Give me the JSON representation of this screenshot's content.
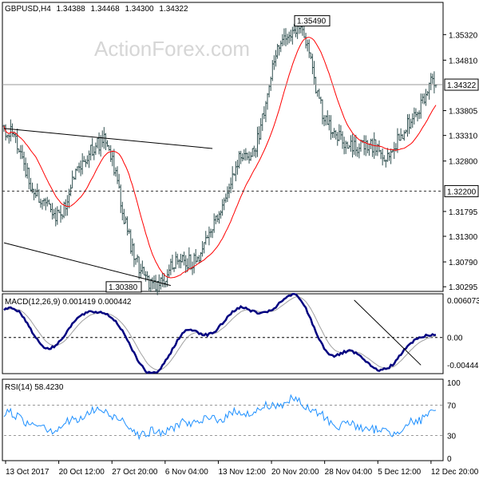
{
  "watermark": "ActionForex.com",
  "chart_data": [
    {
      "panel": "price",
      "type": "ohlc",
      "header": {
        "symbol_tf": "GBPUSD,H4",
        "open": "1.34388",
        "high": "1.34468",
        "low": "1.34300",
        "close": "1.34322"
      },
      "y_ticks": [
        "1.35320",
        "1.34810",
        "1.34322",
        "1.33805",
        "1.33310",
        "1.32800",
        "1.32200",
        "1.31795",
        "1.31300",
        "1.30790",
        "1.30295"
      ],
      "ylim": [
        1.3025,
        1.3585
      ],
      "grid": false,
      "colors": {
        "bars": "#2f4f4f",
        "ma": "#ff0000",
        "level_line": "#333333"
      },
      "annotations": [
        {
          "text": "1.35490",
          "value": 1.3549
        },
        {
          "text": "1.30380",
          "value": 1.3038
        }
      ],
      "price_label": {
        "text": "1.34322",
        "value": 1.34322
      },
      "level_label": {
        "text": "1.32200",
        "value": 1.322
      },
      "key_points": [
        {
          "x": "13 Oct 2017",
          "price": 1.334
        },
        {
          "x": "20 Oct 12:00",
          "price": 1.3175
        },
        {
          "x": "27 Oct 20:00",
          "price": 1.332
        },
        {
          "x": "6 Nov 04:00",
          "price": 1.3038
        },
        {
          "x": "13 Nov 12:00",
          "price": 1.309
        },
        {
          "x": "20 Nov 20:00",
          "price": 1.328
        },
        {
          "x": "28 Nov 04:00",
          "price": 1.3549
        },
        {
          "x": "5 Dec 12:00",
          "price": 1.332
        },
        {
          "x": "12 Dec 20:00",
          "price": 1.33
        },
        {
          "x": "12 Dec 20:00",
          "price": 1.3432
        }
      ]
    },
    {
      "panel": "macd",
      "type": "line",
      "title": "MACD(12,26,9) 0.001419 0.000442",
      "y_ticks": [
        "0.006073",
        "0.00",
        "-0.004441"
      ],
      "ylim": [
        -0.0055,
        0.0066
      ],
      "series": [
        {
          "name": "MACD",
          "color": "#000080"
        },
        {
          "name": "Signal",
          "color": "#a0a0a0"
        }
      ],
      "key_values": [
        0.0045,
        -0.001,
        0.005,
        -0.0052,
        0.0008,
        0.004,
        0.0061,
        -0.003,
        -0.0045,
        0.0014
      ]
    },
    {
      "panel": "rsi",
      "type": "line",
      "title": "RSI(14) 58.4230",
      "y_ticks": [
        "100",
        "70",
        "30",
        "0"
      ],
      "ylim": [
        0,
        100
      ],
      "levels": [
        70,
        30
      ],
      "series": [
        {
          "name": "RSI",
          "color": "#1e90ff"
        }
      ],
      "key_values": [
        58,
        40,
        62,
        32,
        48,
        60,
        75,
        45,
        35,
        58
      ]
    }
  ],
  "x_ticks": [
    "13 Oct 2017",
    "20 Oct 12:00",
    "27 Oct 20:00",
    "6 Nov 04:00",
    "13 Nov 12:00",
    "20 Nov 20:00",
    "28 Nov 04:00",
    "5 Dec 12:00",
    "12 Dec 20:00"
  ]
}
